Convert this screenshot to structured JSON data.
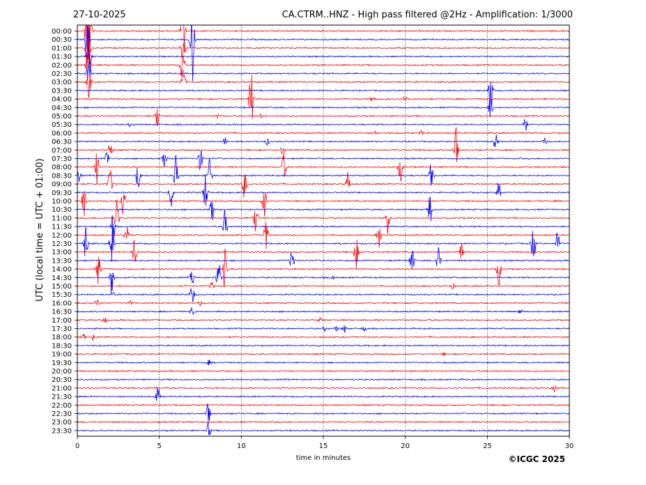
{
  "header": {
    "date": "27-10-2025",
    "title": "CA.CTRM..HNZ - High pass filtered @2Hz - Amplification: 1/3000"
  },
  "copyright": "©ICGC 2025",
  "colors": {
    "red": "#ff0000",
    "blue": "#0000ff",
    "frame": "#000000",
    "grid": "#000000"
  },
  "chart_data": {
    "type": "line",
    "title": "CA.CTRM..HNZ - High pass filtered @2Hz - Amplification: 1/3000",
    "xlabel": "time in minutes",
    "ylabel": "UTC (local time = UTC + 01:00)",
    "xlim": [
      0,
      30
    ],
    "x_ticks": [
      "0",
      "5",
      "10",
      "15",
      "20",
      "25",
      "30"
    ],
    "grid": "vertical dotted lines at 5, 10, 15, 20, 25 minutes",
    "series": [
      {
        "label": "00:00",
        "color": "red",
        "events": [
          [
            0.6,
            7
          ],
          [
            0.75,
            7
          ],
          [
            6.45,
            4
          ]
        ]
      },
      {
        "label": "00:30",
        "color": "blue",
        "events": [
          [
            0.6,
            3
          ],
          [
            7.0,
            6
          ]
        ]
      },
      {
        "label": "01:00",
        "color": "red",
        "events": [
          [
            0.65,
            5
          ],
          [
            6.45,
            3
          ]
        ]
      },
      {
        "label": "01:30",
        "color": "blue",
        "events": [
          [
            0.7,
            4
          ]
        ]
      },
      {
        "label": "02:00",
        "color": "red",
        "events": [
          [
            0.65,
            3
          ],
          [
            6.4,
            3
          ]
        ]
      },
      {
        "label": "02:30",
        "color": "blue",
        "events": [
          [
            0.7,
            2
          ]
        ]
      },
      {
        "label": "03:00",
        "color": "red",
        "events": [
          [
            0.7,
            2
          ],
          [
            6.45,
            2
          ]
        ]
      },
      {
        "label": "03:30",
        "color": "blue",
        "events": [
          [
            25.2,
            3
          ]
        ]
      },
      {
        "label": "04:00",
        "color": "red",
        "events": [
          [
            10.6,
            4
          ],
          [
            18.0,
            0.3
          ],
          [
            20.0,
            0.3
          ]
        ]
      },
      {
        "label": "04:30",
        "color": "blue",
        "events": [
          [
            25.2,
            1.5
          ]
        ]
      },
      {
        "label": "05:00",
        "color": "red",
        "events": [
          [
            4.9,
            1.5
          ],
          [
            8.6,
            0.2
          ],
          [
            11.2,
            0.2
          ]
        ]
      },
      {
        "label": "05:30",
        "color": "blue",
        "events": [
          [
            27.3,
            1
          ],
          [
            3.2,
            0.2
          ]
        ]
      },
      {
        "label": "06:00",
        "color": "red",
        "events": [
          [
            18.2,
            0.3
          ],
          [
            21.0,
            0.3
          ]
        ]
      },
      {
        "label": "06:30",
        "color": "blue",
        "events": [
          [
            9.0,
            0.5
          ],
          [
            11.6,
            0.4
          ],
          [
            28.5,
            0.4
          ],
          [
            25.5,
            1
          ]
        ]
      },
      {
        "label": "07:00",
        "color": "red",
        "events": [
          [
            12.5,
            0.5
          ],
          [
            2.0,
            1
          ],
          [
            23.1,
            3.5
          ]
        ]
      },
      {
        "label": "07:30",
        "color": "blue",
        "events": [
          [
            1.8,
            1.2
          ],
          [
            5.3,
            1.5
          ],
          [
            7.5,
            1.5
          ]
        ]
      },
      {
        "label": "08:00",
        "color": "red",
        "events": [
          [
            1.2,
            2
          ],
          [
            12.6,
            2
          ],
          [
            19.7,
            2
          ]
        ]
      },
      {
        "label": "08:30",
        "color": "blue",
        "events": [
          [
            0.1,
            0.8
          ],
          [
            3.7,
            2
          ],
          [
            6.0,
            2.5
          ],
          [
            8.1,
            2.5
          ],
          [
            21.6,
            2
          ]
        ]
      },
      {
        "label": "09:00",
        "color": "red",
        "events": [
          [
            2.0,
            2
          ],
          [
            10.2,
            2
          ],
          [
            16.5,
            1.5
          ]
        ]
      },
      {
        "label": "09:30",
        "color": "blue",
        "events": [
          [
            5.7,
            2
          ],
          [
            7.8,
            2.5
          ],
          [
            25.7,
            1.5
          ]
        ]
      },
      {
        "label": "10:00",
        "color": "red",
        "events": [
          [
            0.4,
            2
          ],
          [
            2.8,
            2
          ],
          [
            11.4,
            2
          ]
        ]
      },
      {
        "label": "10:30",
        "color": "blue",
        "events": [
          [
            8.2,
            2.5
          ],
          [
            21.5,
            2
          ]
        ]
      },
      {
        "label": "11:00",
        "color": "red",
        "events": [
          [
            2.4,
            2.5
          ],
          [
            10.9,
            2.5
          ],
          [
            18.9,
            2
          ]
        ]
      },
      {
        "label": "11:30",
        "color": "blue",
        "events": [
          [
            2.2,
            2.5
          ],
          [
            9.0,
            2
          ]
        ]
      },
      {
        "label": "12:00",
        "color": "red",
        "events": [
          [
            3.0,
            2.5
          ],
          [
            11.5,
            2.5
          ],
          [
            18.4,
            1.5
          ]
        ]
      },
      {
        "label": "12:30",
        "color": "blue",
        "events": [
          [
            0.5,
            2.5
          ],
          [
            2.1,
            2.5
          ],
          [
            27.8,
            2.5
          ],
          [
            29.3,
            2
          ]
        ]
      },
      {
        "label": "13:00",
        "color": "red",
        "events": [
          [
            3.5,
            2
          ],
          [
            17.0,
            2
          ],
          [
            23.4,
            2
          ]
        ]
      },
      {
        "label": "13:30",
        "color": "blue",
        "events": [
          [
            13.1,
            2
          ],
          [
            20.4,
            2
          ],
          [
            22.0,
            2
          ]
        ]
      },
      {
        "label": "14:00",
        "color": "red",
        "events": [
          [
            1.3,
            2
          ],
          [
            9.0,
            2.5
          ],
          [
            25.7,
            2
          ]
        ]
      },
      {
        "label": "14:30",
        "color": "blue",
        "events": [
          [
            2.1,
            2.5
          ],
          [
            7.0,
            1
          ],
          [
            8.6,
            2.5
          ],
          [
            15.6,
            0.2
          ]
        ]
      },
      {
        "label": "15:00",
        "color": "red",
        "events": [
          [
            8.2,
            0.5
          ],
          [
            22.9,
            0.3
          ]
        ]
      },
      {
        "label": "15:30",
        "color": "blue",
        "events": [
          [
            7.0,
            1.5
          ],
          [
            2.2,
            0.2
          ]
        ]
      },
      {
        "label": "16:00",
        "color": "red",
        "events": [
          [
            1.2,
            0.4
          ],
          [
            3.2,
            0.4
          ],
          [
            7.5,
            0.3
          ]
        ]
      },
      {
        "label": "16:30",
        "color": "blue",
        "events": [
          [
            27.0,
            0.3
          ],
          [
            7.0,
            0.5
          ]
        ]
      },
      {
        "label": "17:00",
        "color": "red",
        "events": [
          [
            1.7,
            0.3
          ],
          [
            14.8,
            0.2
          ]
        ]
      },
      {
        "label": "17:30",
        "color": "blue",
        "events": [
          [
            15.1,
            0.3
          ],
          [
            15.8,
            0.3
          ],
          [
            16.3,
            0.5
          ],
          [
            17.5,
            0.3
          ]
        ]
      },
      {
        "label": "18:00",
        "color": "red",
        "events": [
          [
            0.4,
            0.3
          ],
          [
            1.0,
            0.6
          ]
        ]
      },
      {
        "label": "18:30",
        "color": "blue",
        "events": []
      },
      {
        "label": "19:00",
        "color": "red",
        "events": [
          [
            22.4,
            0.2
          ]
        ]
      },
      {
        "label": "19:30",
        "color": "blue",
        "events": [
          [
            8.0,
            0.3
          ]
        ]
      },
      {
        "label": "20:00",
        "color": "red",
        "events": []
      },
      {
        "label": "20:30",
        "color": "blue",
        "events": []
      },
      {
        "label": "21:00",
        "color": "red",
        "events": [
          [
            29.1,
            0.5
          ]
        ]
      },
      {
        "label": "21:30",
        "color": "blue",
        "events": [
          [
            4.9,
            1.2
          ]
        ]
      },
      {
        "label": "22:00",
        "color": "red",
        "events": []
      },
      {
        "label": "22:30",
        "color": "blue",
        "events": [
          [
            8.0,
            2
          ]
        ]
      },
      {
        "label": "23:00",
        "color": "red",
        "events": []
      },
      {
        "label": "23:30",
        "color": "blue",
        "events": [
          [
            8.0,
            1
          ]
        ]
      }
    ]
  }
}
